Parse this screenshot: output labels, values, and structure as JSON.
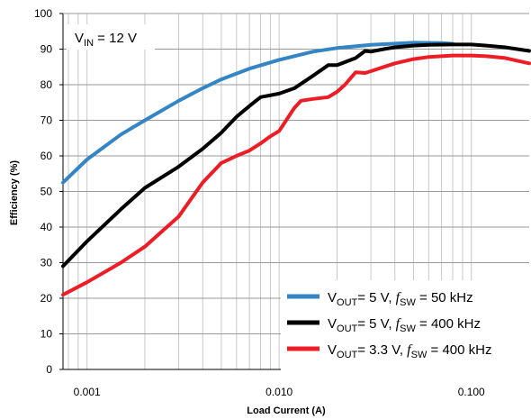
{
  "chart_data": {
    "type": "line",
    "title": "",
    "xlabel": "Load Current (A)",
    "ylabel": "Efficiency (%)",
    "xscale": "log",
    "xlim": [
      0.00075,
      0.2
    ],
    "ylim": [
      0,
      100
    ],
    "grid": true,
    "legend_position": "bottom-right",
    "y_ticks": [
      "0",
      "10",
      "20",
      "30",
      "40",
      "50",
      "60",
      "70",
      "80",
      "90",
      "100"
    ],
    "x_ticks": [
      {
        "value": 0.001,
        "label": "0.001"
      },
      {
        "value": 0.01,
        "label": "0.010"
      },
      {
        "value": 0.1,
        "label": "0.100"
      }
    ],
    "annotation": {
      "main": "V",
      "sub": "IN",
      "rest": " = 12 V"
    },
    "series": [
      {
        "legend": {
          "v": "V",
          "vsub": "OUT",
          "mid": "= 5 V, ",
          "f": "f",
          "fsub": "SW",
          "end": " = 50 kHz"
        },
        "color": "#3385c6",
        "x": [
          0.00075,
          0.001,
          0.0015,
          0.002,
          0.003,
          0.004,
          0.005,
          0.007,
          0.01,
          0.015,
          0.02,
          0.03,
          0.05,
          0.07,
          0.08
        ],
        "y": [
          52.5,
          59,
          66,
          70,
          75.5,
          79,
          81.5,
          84.5,
          87,
          89.3,
          90.3,
          91.2,
          91.8,
          91.7,
          91.5
        ]
      },
      {
        "legend": {
          "v": "V",
          "vsub": "OUT",
          "mid": "= 5 V, ",
          "f": "f",
          "fsub": "SW",
          "end": " = 400 kHz"
        },
        "color": "#000000",
        "x": [
          0.00075,
          0.001,
          0.0015,
          0.002,
          0.003,
          0.004,
          0.005,
          0.006,
          0.007,
          0.008,
          0.01,
          0.012,
          0.015,
          0.018,
          0.02,
          0.025,
          0.028,
          0.03,
          0.035,
          0.04,
          0.05,
          0.06,
          0.08,
          0.1,
          0.12,
          0.15,
          0.2
        ],
        "y": [
          29,
          36,
          45,
          51,
          57,
          62,
          66.5,
          71,
          74,
          76.5,
          77.5,
          79,
          82.5,
          85.5,
          85.5,
          87.5,
          89.5,
          89.3,
          90,
          90.5,
          91,
          91.2,
          91.3,
          91.3,
          91,
          90.5,
          89.5
        ]
      },
      {
        "legend": {
          "v": "V",
          "vsub": "OUT",
          "mid": "= 3.3 V, ",
          "f": "f",
          "fsub": "SW",
          "end": " = 400 kHz"
        },
        "color": "#ee1c25",
        "x": [
          0.00075,
          0.001,
          0.0015,
          0.002,
          0.003,
          0.004,
          0.005,
          0.006,
          0.007,
          0.008,
          0.009,
          0.01,
          0.012,
          0.013,
          0.015,
          0.018,
          0.02,
          0.022,
          0.025,
          0.028,
          0.03,
          0.035,
          0.04,
          0.05,
          0.06,
          0.08,
          0.1,
          0.12,
          0.15,
          0.2
        ],
        "y": [
          21,
          24.5,
          30,
          34.5,
          43,
          52.5,
          58,
          60,
          61.5,
          63.5,
          65.5,
          67,
          73.5,
          75.5,
          76,
          76.5,
          78,
          80,
          83.5,
          83.3,
          83.8,
          85,
          86,
          87.2,
          87.8,
          88.2,
          88.2,
          88,
          87.5,
          86
        ]
      }
    ]
  }
}
